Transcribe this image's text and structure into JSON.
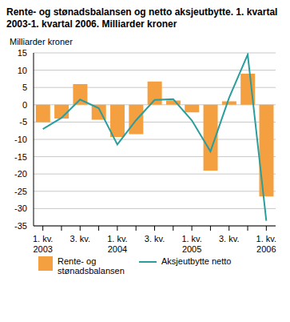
{
  "chart_data": {
    "type": "bar",
    "title": "Rente- og stønadsbalansen og netto aksjeutbytte. 1. kvartal 2003-1. kvartal 2006. Milliarder kroner",
    "y_label": "Milliarder kroner",
    "categories": [
      "1. kv.\n2003",
      null,
      "3. kv.",
      null,
      "1. kv.\n2004",
      null,
      "3. kv.",
      null,
      "1. kv.\n2005",
      null,
      "3. kv.",
      null,
      "1. kv.\n2006"
    ],
    "series": [
      {
        "name": "Rente- og stønadsbalansen",
        "type": "bar",
        "color": "#f5a040",
        "values": [
          -5,
          -4,
          6,
          -4.3,
          -9.3,
          -8.5,
          6.7,
          1.2,
          -2.2,
          -19,
          1,
          9,
          -26.5
        ]
      },
      {
        "name": "Aksjeutbytte netto",
        "type": "line",
        "color": "#2a9d9d",
        "values": [
          -7,
          -3.8,
          1.5,
          -1,
          -11.5,
          -4.5,
          1.4,
          1.6,
          -4.5,
          -13.5,
          2,
          14.5,
          -33.5
        ]
      }
    ],
    "ylim": [
      -35,
      15
    ],
    "yticks": [
      -35,
      -30,
      -25,
      -20,
      -15,
      -10,
      -5,
      0,
      5,
      10,
      15
    ],
    "grid": true,
    "legend": "bottom"
  }
}
